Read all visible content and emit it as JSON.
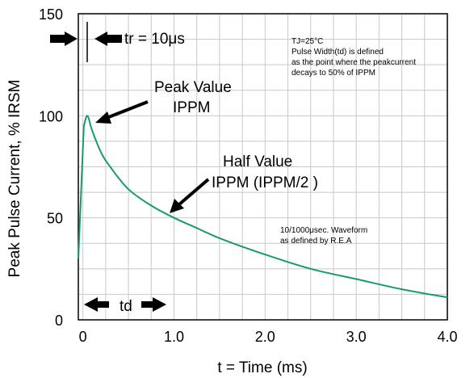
{
  "chart_data": {
    "type": "line",
    "xlabel": "t = Time (ms)",
    "ylabel": "Peak Pulse Current, % IRSM",
    "xlim": [
      -0.05,
      4.0
    ],
    "ylim": [
      0,
      150
    ],
    "x_ticks": [
      "0",
      "1.0",
      "2.0",
      "3.0",
      "4.0"
    ],
    "y_ticks": [
      "0",
      "50",
      "100",
      "150"
    ],
    "grid": true,
    "series": [
      {
        "color": "#1a9a6a",
        "x": [
          -0.05,
          0.01,
          0.05,
          0.1,
          0.2,
          0.3,
          0.5,
          0.75,
          1.0,
          1.25,
          1.5,
          2.0,
          2.5,
          3.0,
          3.5,
          4.0
        ],
        "y": [
          30,
          95,
          100,
          93,
          82,
          75,
          64,
          56,
          50,
          45,
          40,
          32,
          25,
          20,
          15,
          11
        ]
      }
    ],
    "annotations": {
      "tr": "tr = 10μs",
      "peak_line1": "Peak Value",
      "peak_line2": "IPPM",
      "half_line1": "Half Value",
      "half_line2": "IPPM (IPPM/2 )",
      "td": "td",
      "note_lines": [
        "TJ=25°C",
        "Pulse Width(td) is defined",
        "as the point where the peakcurrent",
        "decays to 50% of IPPM"
      ],
      "waveform_line1": "10/1000μsec. Waveform",
      "waveform_line2": "as defined by R.E.A"
    }
  }
}
